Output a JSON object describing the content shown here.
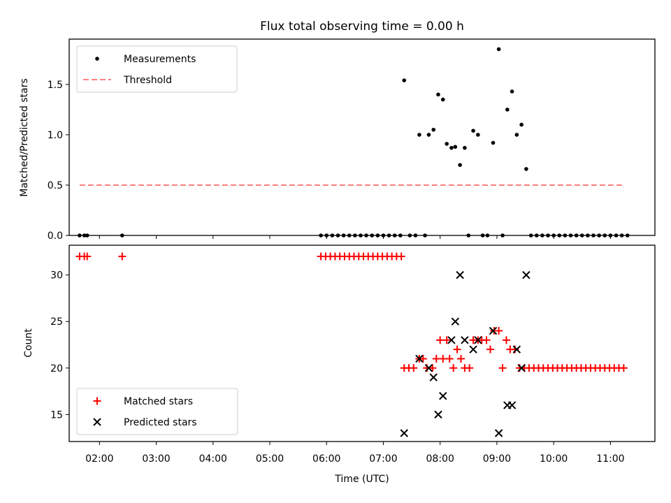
{
  "chart_data": [
    {
      "type": "scatter",
      "title": "Flux total observing time = 0.00 h",
      "xlabel": "",
      "ylabel": "Matched/Predicted stars",
      "xlim": [
        "01:28",
        "11:47"
      ],
      "ylim": [
        0,
        1.95
      ],
      "yticks": [
        "0.0",
        "0.5",
        "1.0",
        "1.5"
      ],
      "legend": {
        "placement": "top-left"
      },
      "series": [
        {
          "name": "Measurements",
          "style": "dot",
          "color": "#000000",
          "points": [
            [
              "01:39",
              0
            ],
            [
              "01:44",
              0
            ],
            [
              "01:47",
              0
            ],
            [
              "02:24",
              0
            ],
            [
              "05:54",
              0
            ],
            [
              "06:00",
              0
            ],
            [
              "06:06",
              0
            ],
            [
              "06:12",
              0
            ],
            [
              "06:18",
              0
            ],
            [
              "06:24",
              0
            ],
            [
              "06:30",
              0
            ],
            [
              "06:36",
              0
            ],
            [
              "06:42",
              0
            ],
            [
              "06:48",
              0
            ],
            [
              "06:54",
              0
            ],
            [
              "07:00",
              0
            ],
            [
              "07:06",
              0
            ],
            [
              "07:12",
              0
            ],
            [
              "07:18",
              0
            ],
            [
              "07:22",
              1.54
            ],
            [
              "07:28",
              0
            ],
            [
              "07:34",
              0
            ],
            [
              "07:38",
              1.0
            ],
            [
              "07:44",
              0
            ],
            [
              "07:48",
              1.0
            ],
            [
              "07:53",
              1.05
            ],
            [
              "07:58",
              1.4
            ],
            [
              "08:03",
              1.35
            ],
            [
              "08:07",
              0.91
            ],
            [
              "08:12",
              0.87
            ],
            [
              "08:16",
              0.88
            ],
            [
              "08:21",
              0.7
            ],
            [
              "08:26",
              0.87
            ],
            [
              "08:30",
              0
            ],
            [
              "08:35",
              1.04
            ],
            [
              "08:40",
              1.0
            ],
            [
              "08:45",
              0
            ],
            [
              "08:50",
              0
            ],
            [
              "08:56",
              0.92
            ],
            [
              "09:02",
              1.85
            ],
            [
              "09:06",
              0
            ],
            [
              "09:11",
              1.25
            ],
            [
              "09:16",
              1.43
            ],
            [
              "09:21",
              1.0
            ],
            [
              "09:26",
              1.1
            ],
            [
              "09:31",
              0.66
            ],
            [
              "09:36",
              0
            ],
            [
              "09:42",
              0
            ],
            [
              "09:48",
              0
            ],
            [
              "09:54",
              0
            ],
            [
              "10:00",
              0
            ],
            [
              "10:06",
              0
            ],
            [
              "10:12",
              0
            ],
            [
              "10:18",
              0
            ],
            [
              "10:24",
              0
            ],
            [
              "10:30",
              0
            ],
            [
              "10:36",
              0
            ],
            [
              "10:42",
              0
            ],
            [
              "10:48",
              0
            ],
            [
              "10:54",
              0
            ],
            [
              "11:00",
              0
            ],
            [
              "11:06",
              0
            ],
            [
              "11:12",
              0
            ],
            [
              "11:18",
              0
            ]
          ]
        },
        {
          "name": "Threshold",
          "style": "dashed-line",
          "color": "#ff8080",
          "points": [
            [
              "01:39",
              0.5
            ],
            [
              "11:13",
              0.5
            ]
          ]
        }
      ]
    },
    {
      "type": "scatter",
      "title": "",
      "xlabel": "Time (UTC)",
      "ylabel": "Count",
      "xlim": [
        "01:28",
        "11:47"
      ],
      "ylim": [
        12.1,
        33.2
      ],
      "yticks": [
        "15",
        "20",
        "25",
        "30"
      ],
      "xticks": [
        "02:00",
        "03:00",
        "04:00",
        "05:00",
        "06:00",
        "07:00",
        "08:00",
        "09:00",
        "10:00",
        "11:00"
      ],
      "legend": {
        "placement": "bottom-left"
      },
      "series": [
        {
          "name": "Matched stars",
          "style": "plus",
          "color": "#ff0000",
          "points": [
            [
              "01:39",
              32
            ],
            [
              "01:44",
              32
            ],
            [
              "01:47",
              32
            ],
            [
              "02:24",
              32
            ],
            [
              "05:54",
              32
            ],
            [
              "05:59",
              32
            ],
            [
              "06:04",
              32
            ],
            [
              "06:09",
              32
            ],
            [
              "06:14",
              32
            ],
            [
              "06:19",
              32
            ],
            [
              "06:24",
              32
            ],
            [
              "06:29",
              32
            ],
            [
              "06:34",
              32
            ],
            [
              "06:39",
              32
            ],
            [
              "06:44",
              32
            ],
            [
              "06:49",
              32
            ],
            [
              "06:54",
              32
            ],
            [
              "06:59",
              32
            ],
            [
              "07:04",
              32
            ],
            [
              "07:09",
              32
            ],
            [
              "07:14",
              32
            ],
            [
              "07:19",
              32
            ],
            [
              "07:22",
              20
            ],
            [
              "07:27",
              20
            ],
            [
              "07:32",
              20
            ],
            [
              "07:38",
              21
            ],
            [
              "07:42",
              21
            ],
            [
              "07:46",
              20
            ],
            [
              "07:52",
              20
            ],
            [
              "07:56",
              21
            ],
            [
              "08:00",
              23
            ],
            [
              "08:03",
              21
            ],
            [
              "08:07",
              23
            ],
            [
              "08:10",
              21
            ],
            [
              "08:14",
              20
            ],
            [
              "08:18",
              22
            ],
            [
              "08:22",
              21
            ],
            [
              "08:26",
              20
            ],
            [
              "08:31",
              20
            ],
            [
              "08:35",
              23
            ],
            [
              "08:40",
              23
            ],
            [
              "08:44",
              23
            ],
            [
              "08:49",
              23
            ],
            [
              "08:53",
              22
            ],
            [
              "08:57",
              24
            ],
            [
              "09:02",
              24
            ],
            [
              "09:06",
              20
            ],
            [
              "09:10",
              23
            ],
            [
              "09:14",
              22
            ],
            [
              "09:19",
              22
            ],
            [
              "09:24",
              20
            ],
            [
              "09:29",
              20
            ],
            [
              "09:34",
              20
            ],
            [
              "09:39",
              20
            ],
            [
              "09:44",
              20
            ],
            [
              "09:49",
              20
            ],
            [
              "09:54",
              20
            ],
            [
              "09:59",
              20
            ],
            [
              "10:04",
              20
            ],
            [
              "10:09",
              20
            ],
            [
              "10:14",
              20
            ],
            [
              "10:19",
              20
            ],
            [
              "10:24",
              20
            ],
            [
              "10:29",
              20
            ],
            [
              "10:34",
              20
            ],
            [
              "10:39",
              20
            ],
            [
              "10:44",
              20
            ],
            [
              "10:49",
              20
            ],
            [
              "10:54",
              20
            ],
            [
              "10:59",
              20
            ],
            [
              "11:04",
              20
            ],
            [
              "11:09",
              20
            ],
            [
              "11:14",
              20
            ]
          ]
        },
        {
          "name": "Predicted stars",
          "style": "x",
          "color": "#000000",
          "points": [
            [
              "07:22",
              13
            ],
            [
              "07:38",
              21
            ],
            [
              "07:48",
              20
            ],
            [
              "07:53",
              19
            ],
            [
              "07:58",
              15
            ],
            [
              "08:03",
              17
            ],
            [
              "08:12",
              23
            ],
            [
              "08:16",
              25
            ],
            [
              "08:21",
              30
            ],
            [
              "08:26",
              23
            ],
            [
              "08:35",
              22
            ],
            [
              "08:40",
              23
            ],
            [
              "08:56",
              24
            ],
            [
              "09:02",
              13
            ],
            [
              "09:11",
              16
            ],
            [
              "09:16",
              16
            ],
            [
              "09:21",
              22
            ],
            [
              "09:26",
              20
            ],
            [
              "09:31",
              30
            ]
          ]
        }
      ]
    }
  ]
}
